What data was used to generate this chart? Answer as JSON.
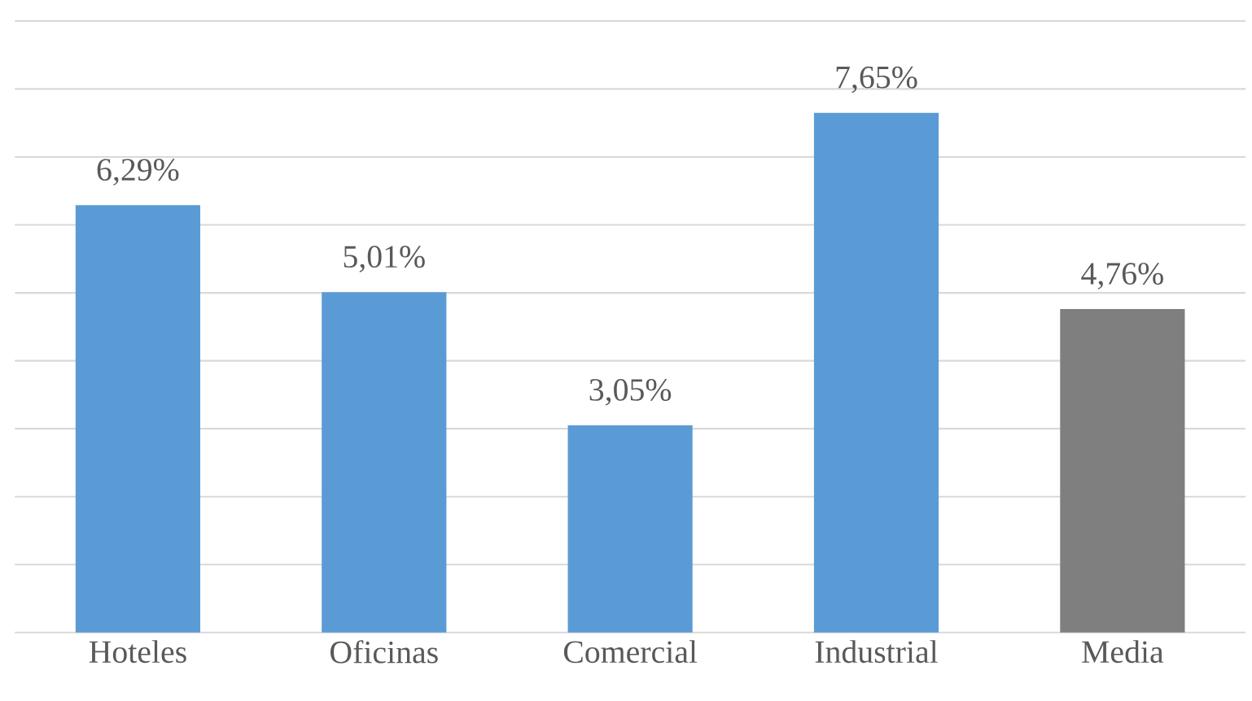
{
  "chart_data": {
    "type": "bar",
    "categories": [
      "Hoteles",
      "Oficinas",
      "Comercial",
      "Industrial",
      "Media"
    ],
    "values": [
      6.29,
      5.01,
      3.05,
      7.65,
      4.76
    ],
    "value_labels": [
      "6,29%",
      "5,01%",
      "3,05%",
      "7,65%",
      "4,76%"
    ],
    "colors": [
      "#5b9bd5",
      "#5b9bd5",
      "#5b9bd5",
      "#5b9bd5",
      "#7f7f7f"
    ],
    "ylim": [
      0,
      9
    ],
    "yticks": [
      {
        "value": 0,
        "label": null
      },
      {
        "value": 1,
        "label": null
      },
      {
        "value": 2,
        "label": null
      },
      {
        "value": 3,
        "label": null
      },
      {
        "value": 4,
        "label": null
      },
      {
        "value": 5,
        "label": null
      },
      {
        "value": 6,
        "label": null
      },
      {
        "value": 7,
        "label": null
      },
      {
        "value": 8,
        "label": null
      },
      {
        "value": 9,
        "label": null
      }
    ],
    "tick_labels": "x",
    "grid": "y"
  }
}
